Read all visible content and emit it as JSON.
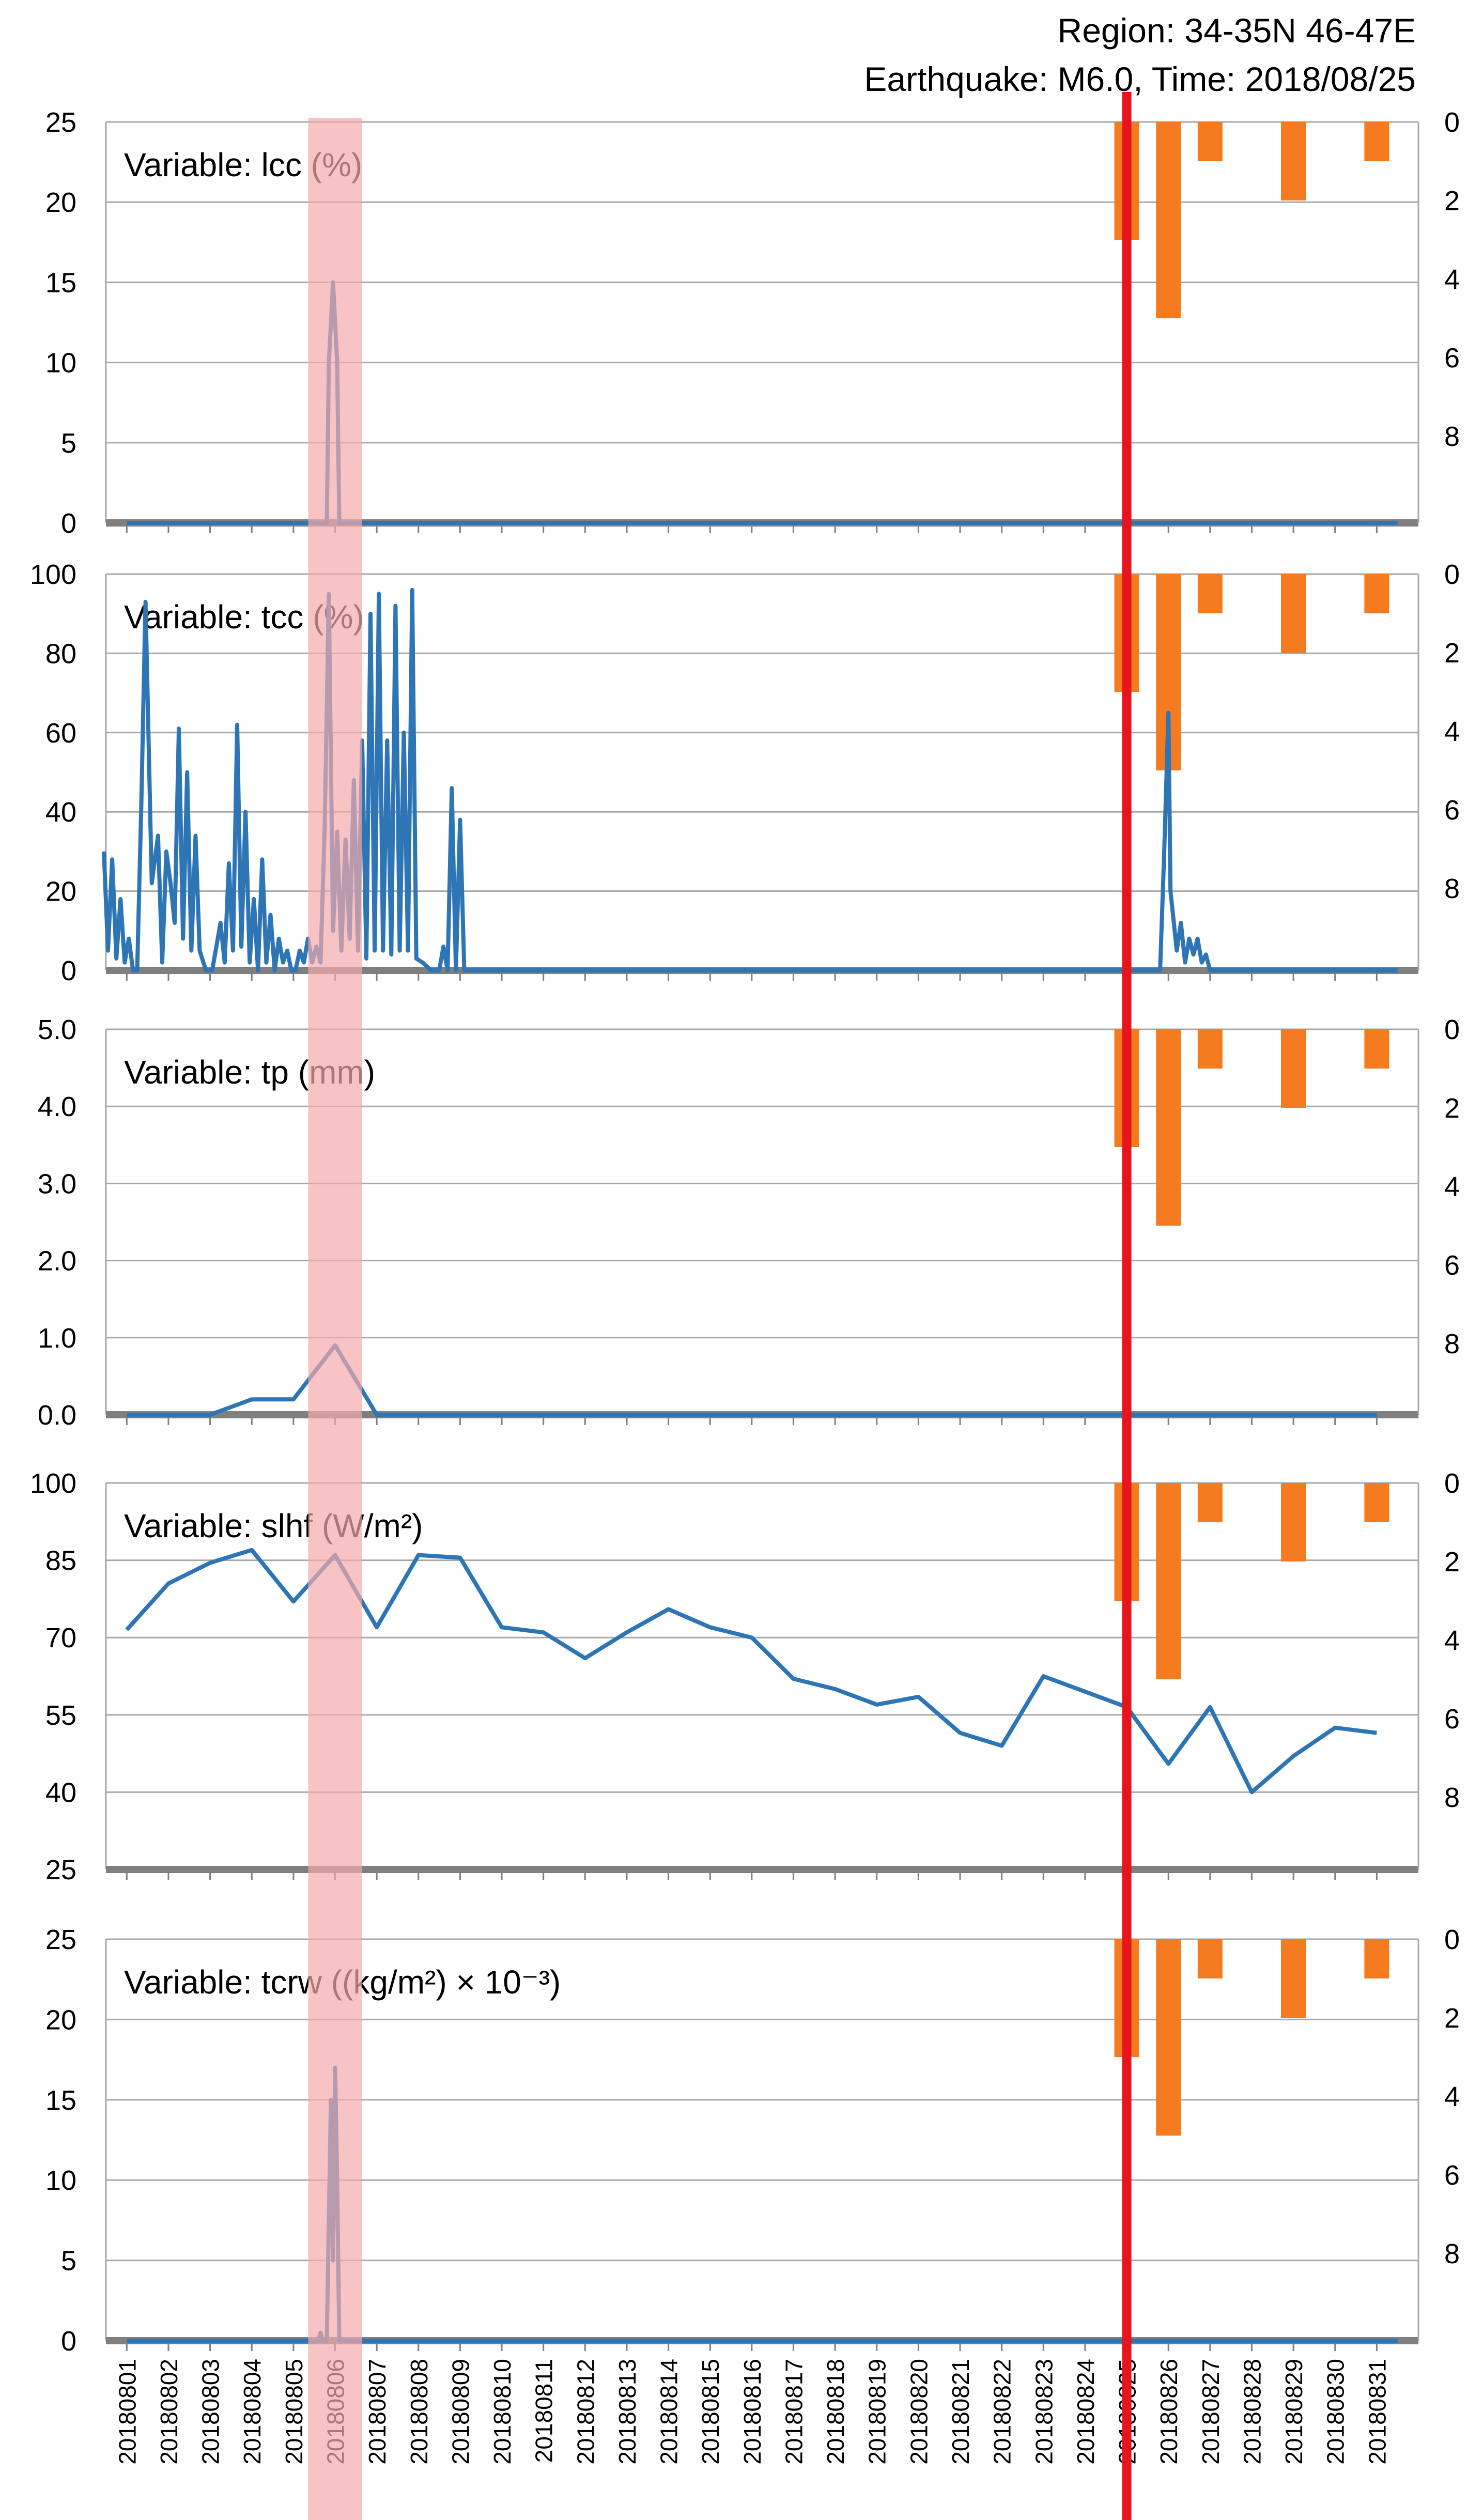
{
  "header": {
    "region": "Region: 34-35N 46-47E",
    "earthquake": "Earthquake: M6.0, Time: 2018/08/25"
  },
  "colors": {
    "line": "#2e75b6",
    "bars": "#f47b20",
    "earthquake_line": "#e8141b",
    "highlight_band": "#f4a9ac",
    "baseline": "#7f7f7f",
    "grid": "#a8a8a8"
  },
  "chart_data": [
    {
      "type": "line",
      "label": "Variable: lcc (%)",
      "ylim": [
        0,
        25
      ],
      "yticks": [
        "0",
        "5",
        "10",
        "15",
        "20",
        "25"
      ],
      "right_ylim": [
        0,
        10
      ],
      "right_yticks": [
        "0",
        "2",
        "4",
        "6",
        "8"
      ],
      "series": [
        {
          "x": [
            1,
            5.8,
            5.85,
            5.95,
            6.05,
            6.1,
            31.5
          ],
          "values": [
            0,
            0,
            10,
            15,
            10,
            0,
            0
          ]
        }
      ],
      "bars": {
        "x": [
          25,
          26,
          27,
          29,
          31
        ],
        "values": [
          3.0,
          5.0,
          1.0,
          2.0,
          1.0
        ]
      }
    },
    {
      "type": "line",
      "label": "Variable: tcc (%)",
      "ylim": [
        0,
        100
      ],
      "yticks": [
        "0",
        "20",
        "40",
        "60",
        "80",
        "100"
      ],
      "right_ylim": [
        0,
        10
      ],
      "right_yticks": [
        "0",
        "2",
        "4",
        "6",
        "8"
      ],
      "series": [
        {
          "x": [
            0.45,
            0.55,
            0.65,
            0.75,
            0.85,
            0.95,
            1.05,
            1.15,
            1.25,
            1.35,
            1.45,
            1.6,
            1.75,
            1.85,
            1.95,
            2.05,
            2.15,
            2.25,
            2.35,
            2.45,
            2.55,
            2.65,
            2.75,
            2.9,
            3.05,
            3.15,
            3.25,
            3.35,
            3.45,
            3.55,
            3.65,
            3.75,
            3.85,
            3.95,
            4.05,
            4.15,
            4.25,
            4.35,
            4.45,
            4.55,
            4.65,
            4.75,
            4.85,
            4.95,
            5.05,
            5.15,
            5.25,
            5.35,
            5.45,
            5.55,
            5.65,
            5.75,
            5.85,
            5.95,
            6.05,
            6.15,
            6.25,
            6.35,
            6.45,
            6.55,
            6.65,
            6.75,
            6.85,
            6.95,
            7.05,
            7.15,
            7.25,
            7.35,
            7.45,
            7.55,
            7.65,
            7.75,
            7.85,
            7.95,
            8.1,
            8.3,
            8.5,
            8.6,
            8.7,
            8.8,
            8.9,
            9.0,
            9.1,
            9.3,
            10,
            15,
            20,
            25,
            25.8,
            25.9,
            26.0,
            26.05,
            26.1,
            26.2,
            26.3,
            26.4,
            26.5,
            26.6,
            26.7,
            26.8,
            26.9,
            27.0,
            27.2,
            28,
            31.5
          ],
          "values": [
            30,
            5,
            28,
            3,
            18,
            2,
            8,
            0,
            0,
            42,
            93,
            22,
            34,
            2,
            30,
            22,
            12,
            61,
            8,
            50,
            5,
            34,
            5,
            0,
            0,
            6,
            12,
            2,
            27,
            5,
            62,
            6,
            40,
            2,
            18,
            0,
            28,
            2,
            14,
            0,
            8,
            2,
            5,
            0,
            0,
            5,
            2,
            8,
            2,
            6,
            2,
            36,
            95,
            10,
            35,
            5,
            33,
            8,
            48,
            5,
            58,
            3,
            90,
            5,
            95,
            5,
            58,
            4,
            92,
            5,
            60,
            5,
            96,
            3,
            2,
            0,
            0,
            6,
            0,
            46,
            0,
            38,
            0,
            0,
            0,
            0,
            0,
            0,
            0,
            30,
            65,
            20,
            15,
            5,
            12,
            2,
            8,
            4,
            8,
            2,
            4,
            0,
            0,
            0,
            0
          ]
        }
      ],
      "bars": {
        "x": [
          25,
          26,
          27,
          29,
          31
        ],
        "values": [
          3.0,
          5.0,
          1.0,
          2.0,
          1.0
        ]
      }
    },
    {
      "type": "line",
      "label": "Variable: tp (mm)",
      "ylim": [
        0,
        5
      ],
      "yticks": [
        "0.0",
        "1.0",
        "2.0",
        "3.0",
        "4.0",
        "5.0"
      ],
      "right_ylim": [
        0,
        10
      ],
      "right_yticks": [
        "0",
        "2",
        "4",
        "6",
        "8"
      ],
      "series": [
        {
          "x": [
            1,
            2,
            3,
            4,
            5,
            6,
            7,
            8,
            9,
            10,
            11,
            12,
            13,
            14,
            15,
            16,
            17,
            18,
            19,
            20,
            21,
            22,
            23,
            24,
            25,
            26,
            27,
            28,
            29,
            30,
            31
          ],
          "values": [
            0,
            0,
            0,
            0.2,
            0.2,
            0.9,
            0,
            0,
            0,
            0,
            0,
            0,
            0,
            0,
            0,
            0,
            0,
            0,
            0,
            0,
            0,
            0,
            0,
            0,
            0,
            0,
            0,
            0,
            0,
            0,
            0
          ]
        }
      ],
      "bars": {
        "x": [
          25,
          26,
          27,
          29,
          31
        ],
        "values": [
          3.0,
          5.0,
          1.0,
          2.0,
          1.0
        ]
      }
    },
    {
      "type": "line",
      "label": "Variable: slhf (W/m²)",
      "ylim": [
        25,
        100
      ],
      "yticks": [
        "25",
        "40",
        "55",
        "70",
        "85",
        "100"
      ],
      "right_ylim": [
        0,
        10
      ],
      "right_yticks": [
        "0",
        "2",
        "4",
        "6",
        "8"
      ],
      "series": [
        {
          "x": [
            1,
            2,
            3,
            4,
            5,
            6,
            7,
            8,
            9,
            10,
            11,
            12,
            13,
            14,
            15,
            16,
            17,
            18,
            19,
            20,
            21,
            22,
            23,
            24,
            25,
            26,
            27,
            28,
            29,
            30,
            31
          ],
          "values": [
            71.5,
            80.5,
            84.5,
            87,
            77,
            86,
            72,
            86,
            85.5,
            72,
            71,
            66,
            71,
            75.5,
            72,
            70,
            62,
            60,
            57,
            58.5,
            51.5,
            49,
            62.5,
            59.5,
            56.5,
            45.5,
            56.5,
            40,
            47,
            52.5,
            51.5
          ]
        }
      ],
      "bars": {
        "x": [
          25,
          26,
          27,
          29,
          31
        ],
        "values": [
          3.0,
          5.0,
          1.0,
          2.0,
          1.0
        ]
      }
    },
    {
      "type": "line",
      "label": "Variable: tcrw ((kg/m²) × 10⁻³)",
      "ylim": [
        0,
        25
      ],
      "yticks": [
        "0",
        "5",
        "10",
        "15",
        "20",
        "25"
      ],
      "right_ylim": [
        0,
        10
      ],
      "right_yticks": [
        "0",
        "2",
        "4",
        "6",
        "8"
      ],
      "series": [
        {
          "x": [
            1,
            5.6,
            5.65,
            5.7,
            5.8,
            5.9,
            5.95,
            6.0,
            6.05,
            6.1,
            6.15,
            31.5
          ],
          "values": [
            0,
            0,
            0.5,
            0,
            0,
            15,
            5,
            17,
            10,
            0,
            0,
            0
          ]
        }
      ],
      "bars": {
        "x": [
          25,
          26,
          27,
          29,
          31
        ],
        "values": [
          3.0,
          5.0,
          1.0,
          2.0,
          1.0
        ]
      }
    }
  ],
  "x_axis": {
    "categories": [
      "20180801",
      "20180802",
      "20180803",
      "20180804",
      "20180805",
      "20180806",
      "20180807",
      "20180808",
      "20180809",
      "20180810",
      "20180811",
      "20180812",
      "20180813",
      "20180814",
      "20180815",
      "20180816",
      "20180817",
      "20180818",
      "20180819",
      "20180820",
      "20180821",
      "20180822",
      "20180823",
      "20180824",
      "20180825",
      "20180826",
      "20180827",
      "20180828",
      "20180829",
      "20180830",
      "20180831"
    ],
    "highlight_category": "20180806",
    "earthquake_category": "20180825"
  }
}
